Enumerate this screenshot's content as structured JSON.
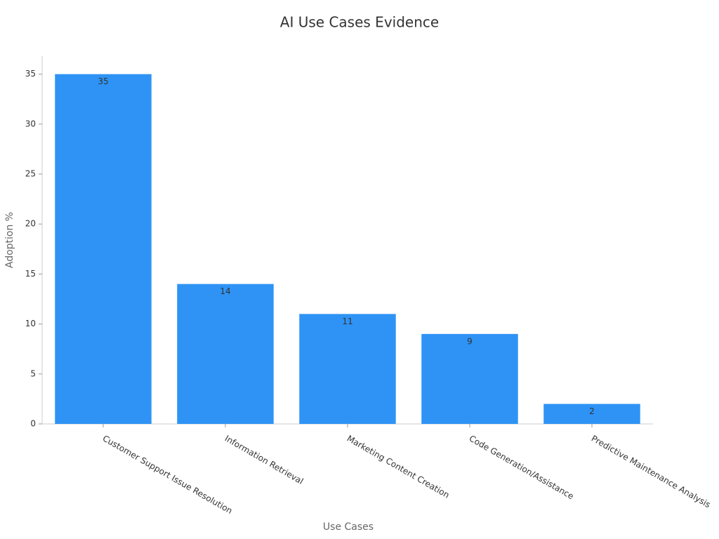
{
  "chart_data": {
    "type": "bar",
    "title": "AI Use Cases Evidence",
    "x_label": "Use Cases",
    "y_label": "Adoption %",
    "categories": [
      "Customer Support Issue Resolution",
      "Information Retrieval",
      "Marketing Content Creation",
      "Code Generation/Assistance",
      "Predictive Maintenance Analysis"
    ],
    "values": [
      35,
      14,
      11,
      9,
      2
    ],
    "color": "#2e93f5",
    "ylim": [
      0,
      36.8
    ],
    "yticks": [
      0,
      5,
      10,
      15,
      20,
      25,
      30,
      35
    ],
    "grid": false
  }
}
